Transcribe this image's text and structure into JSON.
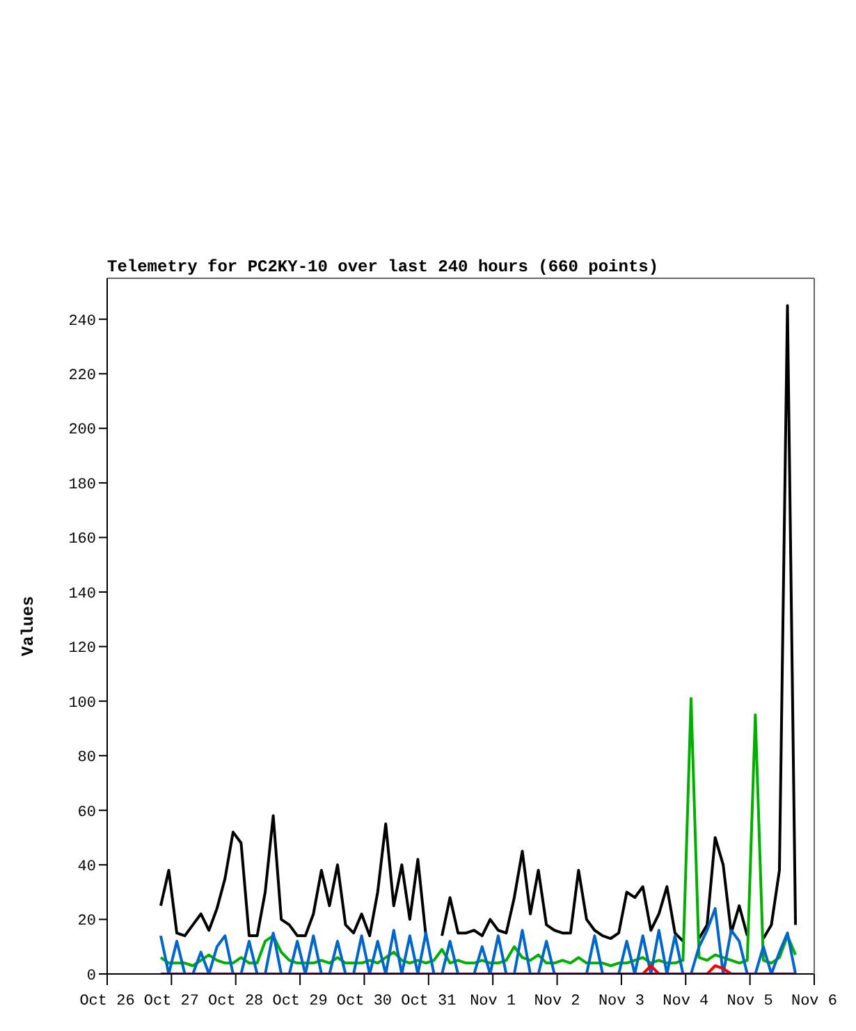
{
  "chart_data": {
    "type": "line",
    "title": "Telemetry for PC2KY-10 over last 240 hours (660 points)",
    "ylabel": "Values",
    "x": [
      "--10-26T20:00",
      "--10-26T23:00",
      "--10-27T02:00",
      "--10-27T05:00",
      "--10-27T08:00",
      "--10-27T11:00",
      "--10-27T14:00",
      "--10-27T17:00",
      "--10-27T20:00",
      "--10-27T23:00",
      "--10-28T02:00",
      "--10-28T05:00",
      "--10-28T08:00",
      "--10-28T11:00",
      "--10-28T14:00",
      "--10-28T17:00",
      "--10-28T20:00",
      "--10-28T23:00",
      "--10-29T02:00",
      "--10-29T05:00",
      "--10-29T08:00",
      "--10-29T11:00",
      "--10-29T14:00",
      "--10-29T17:00",
      "--10-29T20:00",
      "--10-29T23:00",
      "--10-30T02:00",
      "--10-30T05:00",
      "--10-30T08:00",
      "--10-30T11:00",
      "--10-30T14:00",
      "--10-30T17:00",
      "--10-30T20:00",
      "--10-30T23:00",
      "--10-31T02:00",
      "--10-31T05:00",
      "--10-31T08:00",
      "--10-31T11:00",
      "--10-31T14:00",
      "--10-31T17:00",
      "--10-31T20:00",
      "--10-31T23:00",
      "--11-01T02:00",
      "--11-01T05:00",
      "--11-01T08:00",
      "--11-01T11:00",
      "--11-01T14:00",
      "--11-01T17:00",
      "--11-01T20:00",
      "--11-01T23:00",
      "--11-02T02:00",
      "--11-02T05:00",
      "--11-02T08:00",
      "--11-02T11:00",
      "--11-02T14:00",
      "--11-02T17:00",
      "--11-02T20:00",
      "--11-02T23:00",
      "--11-03T02:00",
      "--11-03T05:00",
      "--11-03T08:00",
      "--11-03T11:00",
      "--11-03T14:00",
      "--11-03T17:00",
      "--11-03T20:00",
      "--11-03T23:00",
      "--11-04T02:00",
      "--11-04T05:00",
      "--11-04T08:00",
      "--11-04T11:00",
      "--11-04T14:00",
      "--11-04T17:00",
      "--11-04T20:00",
      "--11-04T23:00",
      "--11-05T02:00",
      "--11-05T05:00",
      "--11-05T08:00",
      "--11-05T11:00",
      "--11-05T14:00",
      "--11-05T17:00"
    ],
    "series": [
      {
        "color": "#000000",
        "values": [
          25,
          38,
          15,
          14,
          18,
          22,
          16,
          24,
          35,
          52,
          48,
          14,
          14,
          30,
          58,
          20,
          18,
          14,
          14,
          22,
          38,
          25,
          40,
          18,
          15,
          22,
          14,
          30,
          55,
          25,
          40,
          20,
          42,
          14,
          null,
          14,
          28,
          15,
          15,
          16,
          14,
          20,
          16,
          15,
          28,
          45,
          22,
          38,
          18,
          16,
          15,
          15,
          38,
          20,
          16,
          14,
          13,
          15,
          30,
          28,
          32,
          16,
          22,
          32,
          15,
          12,
          null,
          13,
          18,
          50,
          40,
          15,
          25,
          14,
          null,
          13,
          18,
          38,
          245,
          18
        ]
      },
      {
        "color": "#00b000",
        "values": [
          6,
          4,
          4,
          4,
          3,
          5,
          7,
          5,
          4,
          4,
          6,
          4,
          4,
          12,
          14,
          8,
          5,
          4,
          4,
          4,
          5,
          4,
          6,
          4,
          4,
          4,
          5,
          4,
          6,
          8,
          5,
          4,
          5,
          4,
          5,
          9,
          4,
          5,
          4,
          4,
          5,
          4,
          4,
          5,
          10,
          6,
          5,
          7,
          4,
          4,
          5,
          4,
          6,
          4,
          4,
          4,
          3,
          4,
          4,
          5,
          6,
          4,
          5,
          4,
          4,
          5,
          101,
          6,
          5,
          7,
          6,
          5,
          4,
          5,
          95,
          5,
          4,
          6,
          14,
          7
        ]
      },
      {
        "color": "#0066cc",
        "values": [
          14,
          0,
          12,
          0,
          0,
          8,
          0,
          10,
          14,
          0,
          0,
          12,
          0,
          0,
          15,
          0,
          0,
          12,
          0,
          14,
          0,
          0,
          12,
          0,
          0,
          14,
          0,
          12,
          0,
          16,
          0,
          14,
          0,
          15,
          0,
          0,
          12,
          0,
          0,
          0,
          10,
          0,
          14,
          0,
          0,
          16,
          0,
          0,
          12,
          0,
          0,
          0,
          0,
          0,
          14,
          0,
          0,
          0,
          12,
          0,
          14,
          0,
          16,
          0,
          14,
          0,
          0,
          10,
          16,
          24,
          0,
          16,
          12,
          0,
          0,
          10,
          0,
          8,
          15,
          0
        ]
      },
      {
        "color": "#ff0000",
        "values": [
          null,
          null,
          null,
          null,
          null,
          null,
          null,
          null,
          null,
          null,
          null,
          null,
          null,
          null,
          null,
          null,
          null,
          null,
          null,
          null,
          null,
          null,
          null,
          null,
          null,
          null,
          null,
          null,
          null,
          null,
          null,
          null,
          null,
          null,
          null,
          null,
          null,
          null,
          null,
          null,
          null,
          null,
          null,
          null,
          null,
          null,
          null,
          null,
          null,
          null,
          null,
          null,
          null,
          null,
          null,
          null,
          null,
          null,
          null,
          null,
          0,
          3,
          0,
          null,
          null,
          null,
          null,
          null,
          0,
          3,
          2,
          0,
          null,
          null,
          null,
          null,
          null,
          null,
          null,
          null
        ]
      },
      {
        "color": "#800080",
        "values": [
          0,
          0,
          0,
          0,
          0,
          0,
          0,
          0,
          0,
          0,
          0,
          0,
          0,
          0,
          0,
          0,
          0,
          0,
          0,
          0,
          0,
          0,
          0,
          0,
          0,
          0,
          0,
          0,
          0,
          0,
          0,
          0,
          0,
          0,
          0,
          0,
          0,
          0,
          0,
          0,
          0,
          0,
          0,
          0,
          0,
          0,
          0,
          0,
          0,
          0,
          0,
          0,
          0,
          0,
          0,
          0,
          0,
          0,
          0,
          0,
          0,
          0,
          0,
          0,
          0,
          0,
          0,
          0,
          0,
          0,
          0,
          0,
          0,
          0,
          0,
          0,
          0,
          0,
          0,
          0
        ]
      }
    ],
    "xlim": [
      "--10-26",
      "--11-06"
    ],
    "xticks": [
      {
        "value": "--10-26",
        "label": "Oct 26"
      },
      {
        "value": "--10-27",
        "label": "Oct 27"
      },
      {
        "value": "--10-28",
        "label": "Oct 28"
      },
      {
        "value": "--10-29",
        "label": "Oct 29"
      },
      {
        "value": "--10-30",
        "label": "Oct 30"
      },
      {
        "value": "--10-31",
        "label": "Oct 31"
      },
      {
        "value": "--11-01",
        "label": "Nov 1"
      },
      {
        "value": "--11-02",
        "label": "Nov 2"
      },
      {
        "value": "--11-03",
        "label": "Nov 3"
      },
      {
        "value": "--11-04",
        "label": "Nov 4"
      },
      {
        "value": "--11-05",
        "label": "Nov 5"
      },
      {
        "value": "--11-06",
        "label": "Nov 6"
      }
    ],
    "ylim": [
      0,
      255
    ],
    "yticks": [
      0,
      20,
      40,
      60,
      80,
      100,
      120,
      140,
      160,
      180,
      200,
      220,
      240
    ],
    "marker": "none",
    "line_style": "solid"
  }
}
